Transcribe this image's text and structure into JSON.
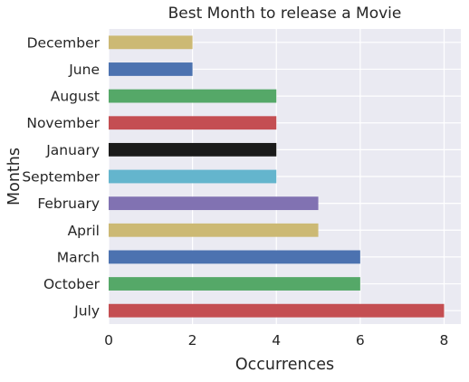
{
  "chart_data": {
    "type": "bar",
    "orientation": "horizontal",
    "title": "Best Month to release a Movie",
    "xlabel": "Occurrences",
    "ylabel": "Months",
    "categories": [
      "July",
      "October",
      "March",
      "April",
      "February",
      "September",
      "January",
      "November",
      "August",
      "June",
      "December"
    ],
    "values": [
      8,
      6,
      6,
      5,
      5,
      4,
      4,
      4,
      4,
      2,
      2
    ],
    "colors": [
      "#c44e52",
      "#55a868",
      "#4c72b0",
      "#ccb974",
      "#8172b2",
      "#64b5cd",
      "#1a1a1a",
      "#c44e52",
      "#55a868",
      "#4c72b0",
      "#ccb974"
    ],
    "xlim": [
      0,
      8.4
    ],
    "xticks": [
      "0",
      "2",
      "4",
      "6",
      "8"
    ],
    "grid": true,
    "background": "#eaeaf2"
  }
}
